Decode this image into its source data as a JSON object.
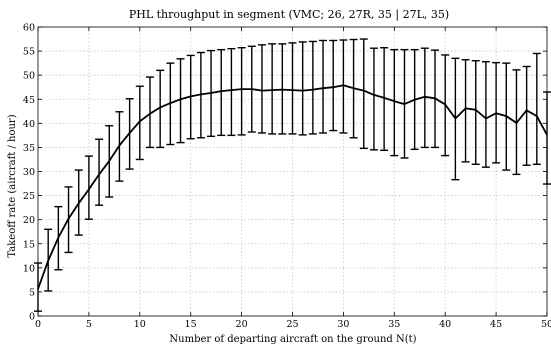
{
  "chart_data": {
    "type": "line",
    "title": "PHL throughput in segment (VMC; 26, 27R, 35 | 27L, 35)",
    "xlabel": "Number of departing aircraft on the ground N(t)",
    "ylabel": "Takeoff rate (aircraft / hour)",
    "xlim": [
      0,
      50
    ],
    "ylim": [
      0,
      60
    ],
    "xticks": [
      0,
      5,
      10,
      15,
      20,
      25,
      30,
      35,
      40,
      45,
      50
    ],
    "yticks": [
      0,
      5,
      10,
      15,
      20,
      25,
      30,
      35,
      40,
      45,
      50,
      55,
      60
    ],
    "grid": true,
    "series": [
      {
        "error_bars": "mean ± std",
        "x": [
          0,
          1,
          2,
          3,
          4,
          5,
          6,
          7,
          8,
          9,
          10,
          11,
          12,
          13,
          14,
          15,
          16,
          17,
          18,
          19,
          20,
          21,
          22,
          23,
          24,
          25,
          26,
          27,
          28,
          29,
          30,
          31,
          32,
          33,
          34,
          35,
          36,
          37,
          38,
          39,
          40,
          41,
          42,
          43,
          44,
          45,
          46,
          47,
          48,
          49,
          50
        ],
        "y": [
          5.6,
          11.5,
          16.3,
          20.2,
          23.4,
          26.3,
          29.4,
          32.2,
          35.4,
          38.0,
          40.4,
          42.0,
          43.3,
          44.2,
          45.0,
          45.6,
          46.0,
          46.3,
          46.7,
          46.9,
          47.1,
          47.1,
          46.8,
          46.9,
          47.0,
          46.9,
          46.8,
          47.0,
          47.3,
          47.5,
          47.9,
          47.3,
          46.8,
          45.9,
          45.3,
          44.6,
          44.0,
          44.9,
          45.5,
          45.2,
          43.9,
          41.0,
          43.1,
          42.8,
          41.0,
          42.1,
          41.5,
          40.1,
          42.7,
          41.5,
          37.6
        ],
        "lower": [
          1.0,
          5.2,
          9.6,
          13.2,
          16.8,
          20.1,
          23.0,
          24.7,
          28.0,
          30.5,
          32.5,
          35.0,
          35.0,
          35.6,
          36.0,
          36.8,
          37.0,
          37.3,
          37.5,
          37.5,
          37.6,
          38.2,
          38.0,
          37.8,
          37.8,
          37.8,
          37.6,
          37.8,
          38.0,
          38.5,
          38.0,
          37.0,
          34.8,
          34.5,
          34.4,
          33.3,
          32.8,
          34.6,
          35.0,
          35.0,
          33.3,
          28.3,
          32.0,
          31.5,
          30.9,
          31.8,
          30.3,
          29.4,
          31.3,
          31.5,
          27.4
        ],
        "upper": [
          11.0,
          18.0,
          22.7,
          26.8,
          30.3,
          33.2,
          36.7,
          39.5,
          42.4,
          45.1,
          47.7,
          49.6,
          51.0,
          52.5,
          53.4,
          54.1,
          54.7,
          55.1,
          55.3,
          55.5,
          55.7,
          56.0,
          56.3,
          56.5,
          56.5,
          56.7,
          56.9,
          57.0,
          57.2,
          57.2,
          57.3,
          57.4,
          57.5,
          55.6,
          55.7,
          55.3,
          55.3,
          55.3,
          55.6,
          55.2,
          54.2,
          53.5,
          53.2,
          53.0,
          52.8,
          52.6,
          52.5,
          51.1,
          51.8,
          54.5,
          46.5
        ]
      }
    ]
  }
}
